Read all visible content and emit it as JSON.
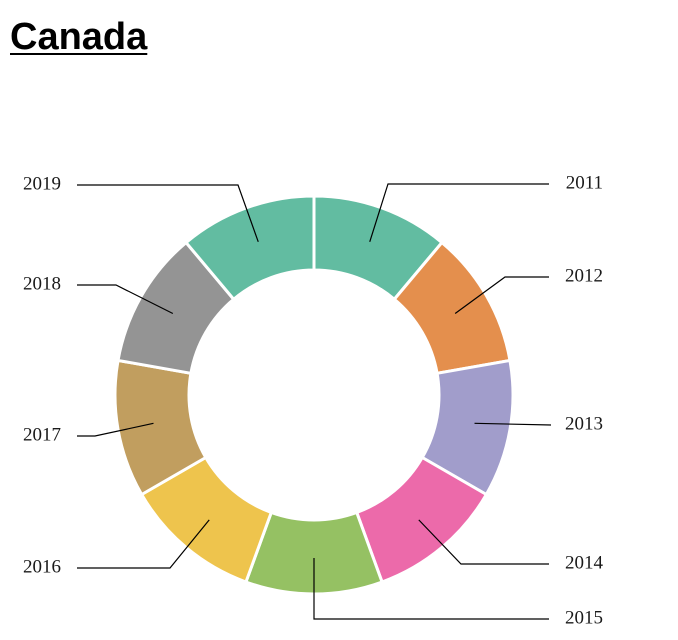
{
  "chart_data": {
    "type": "pie",
    "donut": true,
    "title": "Canada",
    "categories": [
      "2011",
      "2012",
      "2013",
      "2014",
      "2015",
      "2016",
      "2017",
      "2018",
      "2019"
    ],
    "values": [
      1,
      1,
      1,
      1,
      1,
      1,
      1,
      1,
      1
    ],
    "colors": [
      "#62bca1",
      "#e48f4d",
      "#a19dcb",
      "#ec6aaa",
      "#95c163",
      "#eec44d",
      "#c19e5f",
      "#949494",
      "#62bca1"
    ],
    "legend": "none"
  }
}
